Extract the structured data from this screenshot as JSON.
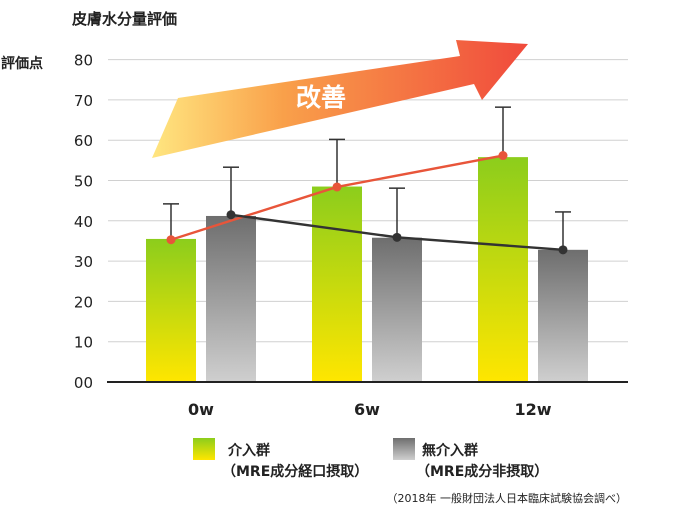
{
  "chart_data": {
    "type": "bar",
    "title": "皮膚水分量評価",
    "ylabel": "評価点",
    "ylim": [
      0,
      80
    ],
    "yticks": [
      "00",
      "10",
      "20",
      "30",
      "40",
      "50",
      "60",
      "70",
      "80"
    ],
    "categories": [
      "0w",
      "6w",
      "12w"
    ],
    "grid": true,
    "series": [
      {
        "name": "介入群",
        "sublabel": "（MRE成分経口摂取）",
        "values": [
          35.5,
          48.5,
          55.8
        ],
        "err_upper": [
          44.2,
          60.2,
          68.2
        ],
        "line_color": "#e8553a",
        "bar_top": "#8ccd1c",
        "bar_bottom": "#ffe600"
      },
      {
        "name": "無介入群",
        "sublabel": "（MRE成分非摂取）",
        "values": [
          41.2,
          35.8,
          32.8
        ],
        "err_upper": [
          53.3,
          48.1,
          42.2
        ],
        "line_color": "#333333",
        "bar_top": "#6e6e6e",
        "bar_bottom": "#cfcfcf"
      }
    ],
    "trend_points": [
      [
        35.3,
        41.5
      ],
      [
        48.4,
        35.9
      ],
      [
        56.2,
        32.8
      ]
    ],
    "arrow_label": "改善",
    "source_note": "（2018年 一般財団法人日本臨床試験協会調べ）"
  }
}
